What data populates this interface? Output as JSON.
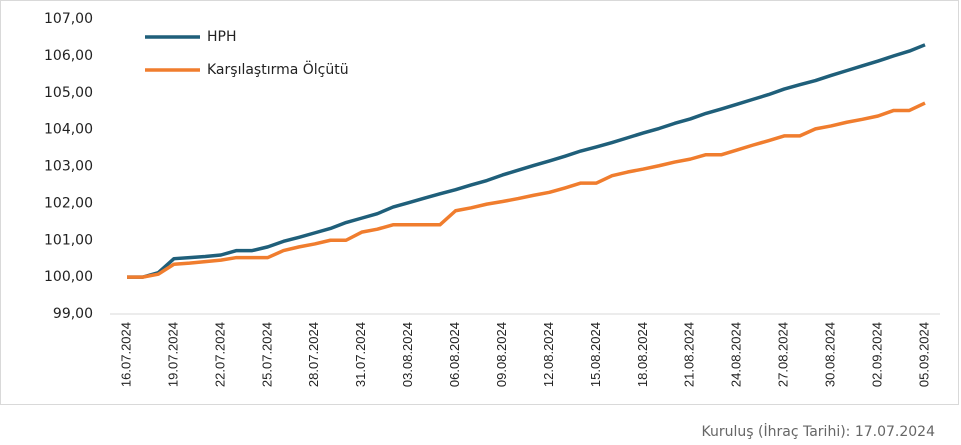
{
  "chart_data": {
    "type": "line",
    "categories": [
      "16.07.2024",
      null,
      null,
      "19.07.2024",
      null,
      null,
      "22.07.2024",
      null,
      null,
      "25.07.2024",
      null,
      null,
      "28.07.2024",
      null,
      null,
      "31.07.2024",
      null,
      null,
      "03.08.2024",
      null,
      null,
      "06.08.2024",
      null,
      null,
      "09.08.2024",
      null,
      null,
      "12.08.2024",
      null,
      null,
      "15.08.2024",
      null,
      null,
      "18.08.2024",
      null,
      null,
      "21.08.2024",
      null,
      null,
      "24.08.2024",
      null,
      null,
      "27.08.2024",
      null,
      null,
      "30.08.2024",
      null,
      null,
      "02.09.2024",
      null,
      null,
      "05.09.2024"
    ],
    "series": [
      {
        "name": "HPH",
        "color": "#1f5f7a",
        "values": [
          100.0,
          100.0,
          100.12,
          100.5,
          100.53,
          100.56,
          100.6,
          100.72,
          100.72,
          100.82,
          100.97,
          101.08,
          101.2,
          101.32,
          101.48,
          101.6,
          101.72,
          101.9,
          102.02,
          102.14,
          102.26,
          102.37,
          102.5,
          102.62,
          102.77,
          102.9,
          103.03,
          103.15,
          103.28,
          103.42,
          103.53,
          103.65,
          103.78,
          103.91,
          104.03,
          104.17,
          104.29,
          104.44,
          104.56,
          104.69,
          104.82,
          104.95,
          105.1,
          105.22,
          105.33,
          105.47,
          105.6,
          105.73,
          105.86,
          106.0,
          106.13,
          106.3
        ]
      },
      {
        "name": "Karşılaştırma Ölçütü",
        "color": "#f07d2e",
        "values": [
          100.0,
          100.0,
          100.08,
          100.35,
          100.38,
          100.42,
          100.46,
          100.53,
          100.53,
          100.53,
          100.72,
          100.82,
          100.9,
          101.0,
          101.0,
          101.22,
          101.3,
          101.42,
          101.42,
          101.42,
          101.42,
          101.8,
          101.88,
          101.98,
          102.05,
          102.13,
          102.22,
          102.3,
          102.42,
          102.55,
          102.55,
          102.75,
          102.85,
          102.93,
          103.02,
          103.12,
          103.2,
          103.32,
          103.32,
          103.45,
          103.58,
          103.7,
          103.83,
          103.83,
          104.02,
          104.1,
          104.2,
          104.28,
          104.37,
          104.52,
          104.52,
          104.72
        ]
      }
    ],
    "ylim": [
      99,
      107
    ],
    "yticks": [
      {
        "value": 99,
        "label": "99,00"
      },
      {
        "value": 100,
        "label": "100,00"
      },
      {
        "value": 101,
        "label": "101,00"
      },
      {
        "value": 102,
        "label": "102,00"
      },
      {
        "value": 103,
        "label": "103,00"
      },
      {
        "value": 104,
        "label": "104,00"
      },
      {
        "value": 105,
        "label": "105,00"
      },
      {
        "value": 106,
        "label": "106,00"
      },
      {
        "value": 107,
        "label": "107,00"
      }
    ],
    "legend": "top-left",
    "footnote": "Kuruluş (İhraç Tarihi): 17.07.2024"
  }
}
